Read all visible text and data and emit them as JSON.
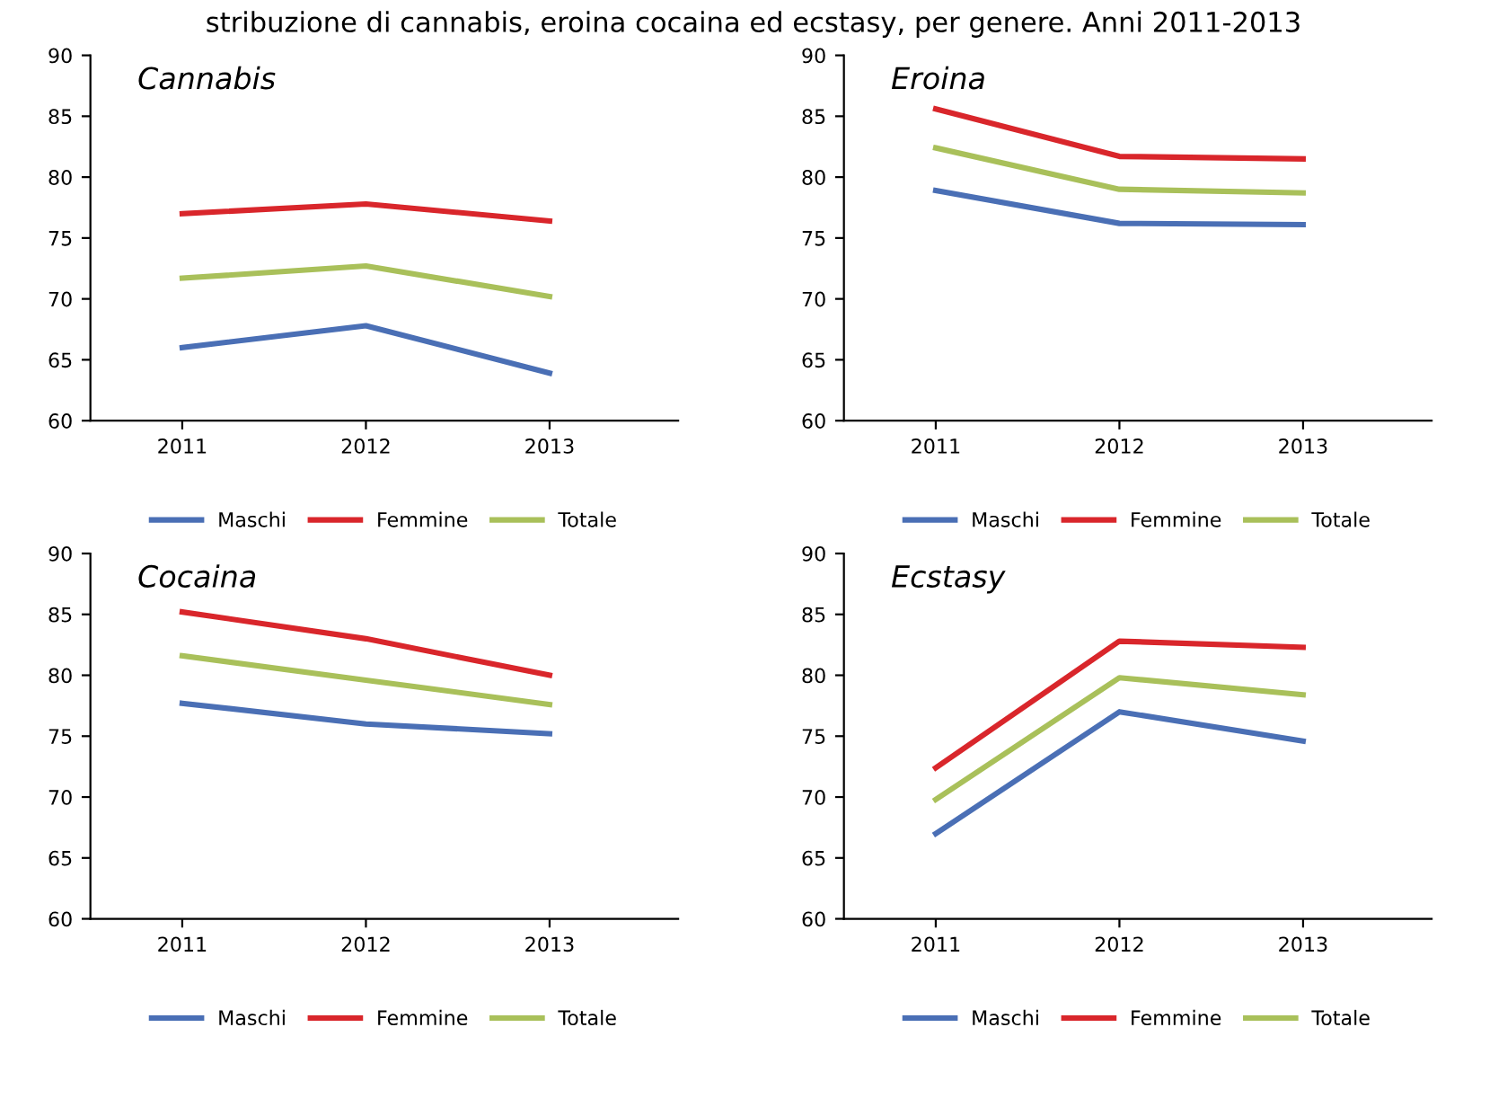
{
  "chart_data": [
    {
      "type": "line",
      "title": "Cannabis",
      "categories": [
        "2011",
        "2012",
        "2013"
      ],
      "ylim": [
        60,
        90
      ],
      "yticks": [
        60,
        65,
        70,
        75,
        80,
        85,
        90
      ],
      "grid": false,
      "legend": "bottom",
      "marker": "none",
      "line_style": "solid",
      "series": [
        {
          "name": "Maschi",
          "color": "#4a6fb5",
          "values": [
            66,
            67.8,
            63.9
          ]
        },
        {
          "name": "Femmine",
          "color": "#d9262b",
          "values": [
            77,
            77.8,
            76.4
          ]
        },
        {
          "name": "Totale",
          "color": "#a9c05a",
          "values": [
            71.7,
            72.7,
            70.2
          ]
        }
      ],
      "annotations": [
        "stribuzione di cannabis, eroina cocaina ed ecstasy, per genere. Anni 2011-2013"
      ]
    },
    {
      "type": "line",
      "title": "Eroina",
      "categories": [
        "2011",
        "2012",
        "2013"
      ],
      "ylim": [
        60,
        90
      ],
      "yticks": [
        60,
        65,
        70,
        75,
        80,
        85,
        90
      ],
      "grid": false,
      "legend": "bottom",
      "marker": "none",
      "line_style": "solid",
      "series": [
        {
          "name": "Maschi",
          "color": "#4a6fb5",
          "values": [
            78.9,
            76.2,
            76.1
          ]
        },
        {
          "name": "Femmine",
          "color": "#d9262b",
          "values": [
            85.6,
            81.7,
            81.5
          ]
        },
        {
          "name": "Totale",
          "color": "#a9c05a",
          "values": [
            82.4,
            79,
            78.7
          ]
        }
      ]
    },
    {
      "type": "line",
      "title": "Cocaina",
      "categories": [
        "2011",
        "2012",
        "2013"
      ],
      "ylim": [
        60,
        90
      ],
      "yticks": [
        60,
        65,
        70,
        75,
        80,
        85,
        90
      ],
      "grid": false,
      "legend": "bottom",
      "marker": "none",
      "line_style": "solid",
      "series": [
        {
          "name": "Maschi",
          "color": "#4a6fb5",
          "values": [
            77.7,
            76,
            75.2
          ]
        },
        {
          "name": "Femmine",
          "color": "#d9262b",
          "values": [
            85.2,
            83,
            80
          ]
        },
        {
          "name": "Totale",
          "color": "#a9c05a",
          "values": [
            81.6,
            79.6,
            77.6
          ]
        }
      ]
    },
    {
      "type": "line",
      "title": "Ecstasy",
      "categories": [
        "2011",
        "2012",
        "2013"
      ],
      "ylim": [
        60,
        90
      ],
      "yticks": [
        60,
        65,
        70,
        75,
        80,
        85,
        90
      ],
      "grid": false,
      "legend": "bottom",
      "marker": "none",
      "line_style": "solid",
      "series": [
        {
          "name": "Maschi",
          "color": "#4a6fb5",
          "values": [
            67,
            77,
            74.6
          ]
        },
        {
          "name": "Femmine",
          "color": "#d9262b",
          "values": [
            72.4,
            82.8,
            82.3
          ]
        },
        {
          "name": "Totale",
          "color": "#a9c05a",
          "values": [
            69.8,
            79.8,
            78.4
          ]
        }
      ]
    }
  ]
}
